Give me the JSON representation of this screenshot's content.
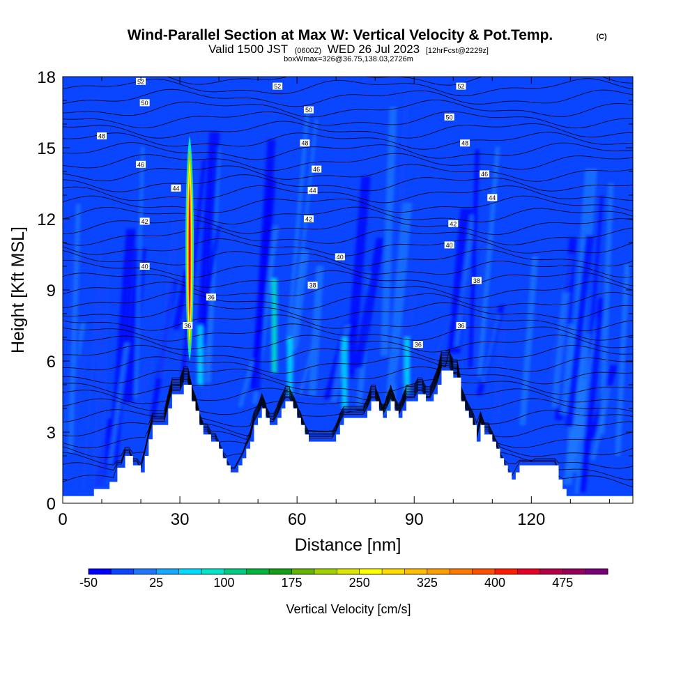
{
  "chart_data": {
    "type": "heatmap",
    "title": "Wind-Parallel Section at Max W: Vertical Velocity & Pot.Temp.",
    "copyright": "(C)",
    "subtitle_main": "Valid 1500 JST",
    "subtitle_z": "(0600Z)",
    "subtitle_date": "WED 26 Jul 2023",
    "subtitle_fcst": "[12hrFcst@2229z]",
    "subtitle2": "boxWmax=326@36.75,138.03,2726m",
    "xlabel": "Distance [nm]",
    "ylabel": "Height [Kft MSL]",
    "xlim": [
      0,
      146
    ],
    "ylim": [
      0,
      18
    ],
    "xticks": [
      "0",
      "30",
      "60",
      "90",
      "120"
    ],
    "xtick_values": [
      0,
      30,
      60,
      90,
      120
    ],
    "yticks": [
      "0",
      "3",
      "6",
      "9",
      "12",
      "15",
      "18"
    ],
    "ytick_values": [
      0,
      3,
      6,
      9,
      12,
      15,
      18
    ],
    "colorbar": {
      "label": "Vertical Velocity [cm/s]",
      "min": -50,
      "max": 525,
      "step": 25,
      "tick_labels": [
        "-50",
        "25",
        "100",
        "175",
        "250",
        "325",
        "400",
        "475"
      ],
      "tick_values": [
        -50,
        25,
        100,
        175,
        250,
        325,
        400,
        475
      ],
      "colors": [
        "#0000ff",
        "#0a46ff",
        "#1e78ff",
        "#14aaff",
        "#00dcff",
        "#00e6c8",
        "#00cc82",
        "#00b43c",
        "#14a014",
        "#64b400",
        "#a0d200",
        "#dce600",
        "#ffff00",
        "#ffdc00",
        "#ffbe00",
        "#ffa000",
        "#ff7800",
        "#ff5000",
        "#ff1e00",
        "#e60028",
        "#b40046",
        "#96005a",
        "#780078"
      ]
    },
    "terrain_profile_kft": [
      [
        0,
        0.3
      ],
      [
        8,
        0.3
      ],
      [
        8,
        0.6
      ],
      [
        12,
        0.6
      ],
      [
        12,
        0.9
      ],
      [
        14,
        0.9
      ],
      [
        14,
        1.5
      ],
      [
        16,
        1.5
      ],
      [
        16,
        2.0
      ],
      [
        18,
        2.0
      ],
      [
        18,
        1.6
      ],
      [
        20,
        1.6
      ],
      [
        20,
        1.3
      ],
      [
        21,
        1.3
      ],
      [
        21,
        2.0
      ],
      [
        22,
        2.0
      ],
      [
        22,
        2.7
      ],
      [
        23,
        2.7
      ],
      [
        23,
        3.3
      ],
      [
        27,
        3.3
      ],
      [
        27,
        4.0
      ],
      [
        28,
        4.0
      ],
      [
        28,
        4.6
      ],
      [
        31,
        4.6
      ],
      [
        31,
        5.0
      ],
      [
        33,
        5.0
      ],
      [
        33,
        4.3
      ],
      [
        34,
        4.3
      ],
      [
        34,
        3.9
      ],
      [
        35,
        3.9
      ],
      [
        35,
        3.3
      ],
      [
        36,
        3.3
      ],
      [
        36,
        2.9
      ],
      [
        38,
        2.9
      ],
      [
        38,
        2.6
      ],
      [
        40,
        2.6
      ],
      [
        40,
        2.3
      ],
      [
        41,
        2.3
      ],
      [
        41,
        1.9
      ],
      [
        42,
        1.9
      ],
      [
        42,
        1.6
      ],
      [
        43,
        1.6
      ],
      [
        43,
        1.3
      ],
      [
        45,
        1.3
      ],
      [
        45,
        1.6
      ],
      [
        46,
        1.6
      ],
      [
        46,
        1.9
      ],
      [
        47,
        1.9
      ],
      [
        47,
        2.3
      ],
      [
        48,
        2.3
      ],
      [
        48,
        2.6
      ],
      [
        49,
        2.6
      ],
      [
        49,
        3.3
      ],
      [
        50,
        3.3
      ],
      [
        50,
        3.6
      ],
      [
        51,
        3.6
      ],
      [
        51,
        4.0
      ],
      [
        52,
        4.0
      ],
      [
        52,
        3.6
      ],
      [
        53,
        3.6
      ],
      [
        53,
        3.3
      ],
      [
        55,
        3.3
      ],
      [
        55,
        3.6
      ],
      [
        56,
        3.6
      ],
      [
        56,
        4.0
      ],
      [
        57,
        4.0
      ],
      [
        57,
        4.3
      ],
      [
        59,
        4.3
      ],
      [
        59,
        4.0
      ],
      [
        60,
        4.0
      ],
      [
        60,
        3.6
      ],
      [
        61,
        3.6
      ],
      [
        61,
        3.3
      ],
      [
        62,
        3.3
      ],
      [
        62,
        2.9
      ],
      [
        63,
        2.9
      ],
      [
        63,
        2.6
      ],
      [
        70,
        2.6
      ],
      [
        70,
        2.9
      ],
      [
        71,
        2.9
      ],
      [
        71,
        3.3
      ],
      [
        72,
        3.3
      ],
      [
        72,
        3.6
      ],
      [
        78,
        3.6
      ],
      [
        78,
        3.9
      ],
      [
        79,
        3.9
      ],
      [
        79,
        4.3
      ],
      [
        81,
        4.3
      ],
      [
        81,
        3.9
      ],
      [
        82,
        3.9
      ],
      [
        82,
        3.6
      ],
      [
        83,
        3.6
      ],
      [
        83,
        3.9
      ],
      [
        84,
        3.9
      ],
      [
        84,
        4.3
      ],
      [
        85,
        4.3
      ],
      [
        85,
        3.9
      ],
      [
        86,
        3.9
      ],
      [
        86,
        3.6
      ],
      [
        87,
        3.6
      ],
      [
        87,
        3.9
      ],
      [
        88,
        3.9
      ],
      [
        88,
        4.3
      ],
      [
        91,
        4.3
      ],
      [
        91,
        4.6
      ],
      [
        93,
        4.6
      ],
      [
        93,
        4.3
      ],
      [
        95,
        4.3
      ],
      [
        95,
        4.6
      ],
      [
        96,
        4.6
      ],
      [
        96,
        5.0
      ],
      [
        97,
        5.0
      ],
      [
        97,
        5.6
      ],
      [
        100,
        5.6
      ],
      [
        100,
        5.3
      ],
      [
        102,
        5.3
      ],
      [
        102,
        4.3
      ],
      [
        103,
        4.3
      ],
      [
        103,
        3.9
      ],
      [
        104,
        3.9
      ],
      [
        104,
        3.6
      ],
      [
        105,
        3.6
      ],
      [
        105,
        3.3
      ],
      [
        106,
        3.3
      ],
      [
        106,
        2.6
      ],
      [
        107,
        2.6
      ],
      [
        107,
        3.3
      ],
      [
        108,
        3.3
      ],
      [
        108,
        2.9
      ],
      [
        110,
        2.9
      ],
      [
        110,
        2.6
      ],
      [
        111,
        2.6
      ],
      [
        111,
        2.3
      ],
      [
        112,
        2.3
      ],
      [
        112,
        1.9
      ],
      [
        113,
        1.9
      ],
      [
        113,
        1.6
      ],
      [
        114,
        1.6
      ],
      [
        114,
        1.3
      ],
      [
        115,
        1.3
      ],
      [
        115,
        1.0
      ],
      [
        116,
        1.0
      ],
      [
        116,
        1.3
      ],
      [
        117,
        1.3
      ],
      [
        117,
        1.6
      ],
      [
        127,
        1.6
      ],
      [
        127,
        1.0
      ],
      [
        128,
        1.0
      ],
      [
        128,
        0.6
      ],
      [
        129,
        0.6
      ],
      [
        129,
        0.3
      ],
      [
        146,
        0.3
      ]
    ],
    "theta_isentropes": [
      {
        "theta": "36",
        "base_kft": 1.0,
        "spacing_kft": 0.42
      },
      {
        "theta": "38",
        "base_kft": 8.6,
        "spacing_kft": 0
      },
      {
        "theta": "40",
        "base_kft": 10.0,
        "spacing_kft": 0
      },
      {
        "theta": "42",
        "base_kft": 11.8,
        "spacing_kft": 0
      },
      {
        "theta": "44",
        "base_kft": 13.1,
        "spacing_kft": 0
      },
      {
        "theta": "46",
        "base_kft": 14.4,
        "spacing_kft": 0
      },
      {
        "theta": "48",
        "base_kft": 15.6,
        "spacing_kft": 0
      },
      {
        "theta": "50",
        "base_kft": 16.6,
        "spacing_kft": 0
      },
      {
        "theta": "52",
        "base_kft": 17.6,
        "spacing_kft": 0
      }
    ],
    "contour_labels": [
      {
        "text": "52",
        "x": 20,
        "y": 17.8
      },
      {
        "text": "52",
        "x": 55,
        "y": 17.6
      },
      {
        "text": "52",
        "x": 102,
        "y": 17.6
      },
      {
        "text": "50",
        "x": 21,
        "y": 16.9
      },
      {
        "text": "50",
        "x": 63,
        "y": 16.6
      },
      {
        "text": "50",
        "x": 99,
        "y": 16.3
      },
      {
        "text": "48",
        "x": 10,
        "y": 15.5
      },
      {
        "text": "48",
        "x": 62,
        "y": 15.2
      },
      {
        "text": "48",
        "x": 103,
        "y": 15.2
      },
      {
        "text": "46",
        "x": 20,
        "y": 14.3
      },
      {
        "text": "46",
        "x": 65,
        "y": 14.1
      },
      {
        "text": "46",
        "x": 108,
        "y": 13.9
      },
      {
        "text": "44",
        "x": 29,
        "y": 13.3
      },
      {
        "text": "44",
        "x": 64,
        "y": 13.2
      },
      {
        "text": "44",
        "x": 110,
        "y": 12.9
      },
      {
        "text": "42",
        "x": 21,
        "y": 11.9
      },
      {
        "text": "42",
        "x": 63,
        "y": 12.0
      },
      {
        "text": "42",
        "x": 100,
        "y": 11.8
      },
      {
        "text": "40",
        "x": 21,
        "y": 10.0
      },
      {
        "text": "40",
        "x": 71,
        "y": 10.4
      },
      {
        "text": "40",
        "x": 99,
        "y": 10.9
      },
      {
        "text": "38",
        "x": 64,
        "y": 9.2
      },
      {
        "text": "38",
        "x": 106,
        "y": 9.4
      },
      {
        "text": "36",
        "x": 38,
        "y": 8.7
      },
      {
        "text": "36",
        "x": 32,
        "y": 7.5
      },
      {
        "text": "36",
        "x": 91,
        "y": 6.7
      },
      {
        "text": "36",
        "x": 102,
        "y": 7.5
      }
    ],
    "updraft_core": {
      "x": 32.5,
      "w_max_cms": 450,
      "base_kft": 6.0,
      "top_kft": 15.5
    },
    "grid": false,
    "legend": "bottom"
  }
}
